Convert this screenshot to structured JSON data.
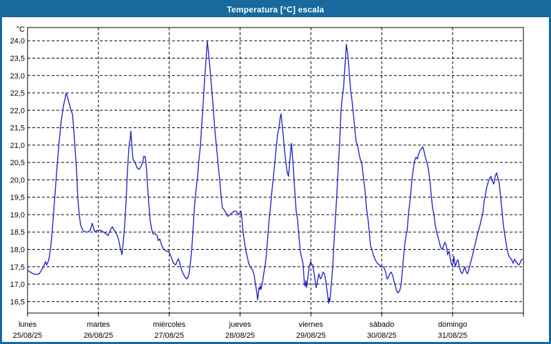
{
  "window": {
    "title": "Temperatura [°C] escala"
  },
  "colors": {
    "titlebar": "#17699e",
    "border": "#17699e",
    "line": "#2424c8",
    "grid": "#000000",
    "text": "#000000",
    "background": "#ffffff"
  },
  "chart_data": {
    "type": "line",
    "title": "Temperatura [°C] escala",
    "ylabel_unit": "°C",
    "grid": true,
    "legend": "none",
    "ylim": [
      16.17,
      24.38
    ],
    "y_tick_labels": [
      "24,0",
      "23,5",
      "23,0",
      "22,5",
      "22,0",
      "21,5",
      "21,0",
      "20,5",
      "20,0",
      "19,5",
      "19,0",
      "18,5",
      "18,0",
      "17,5",
      "17,0",
      "16,5"
    ],
    "x_axis": {
      "hours_total": 168,
      "days": [
        {
          "name": "lunes",
          "date": "25/08/25"
        },
        {
          "name": "martes",
          "date": "26/08/25"
        },
        {
          "name": "miércoles",
          "date": "27/08/25"
        },
        {
          "name": "jueves",
          "date": "28/08/25"
        },
        {
          "name": "viernes",
          "date": "29/08/25"
        },
        {
          "name": "sábado",
          "date": "30/08/25"
        },
        {
          "name": "domingo",
          "date": "31/08/25"
        }
      ]
    },
    "series_name": "Temperatura",
    "points": [
      [
        0,
        17.4
      ],
      [
        0.9,
        17.35
      ],
      [
        1.9,
        17.3
      ],
      [
        3,
        17.28
      ],
      [
        4,
        17.3
      ],
      [
        4.7,
        17.4
      ],
      [
        5.4,
        17.5
      ],
      [
        6.1,
        17.65
      ],
      [
        6.5,
        17.55
      ],
      [
        7.2,
        17.7
      ],
      [
        7.9,
        18.1
      ],
      [
        8.6,
        18.8
      ],
      [
        9.3,
        19.6
      ],
      [
        10,
        20.4
      ],
      [
        10.7,
        21.1
      ],
      [
        11.4,
        21.7
      ],
      [
        12.1,
        22.1
      ],
      [
        13.1,
        22.5
      ],
      [
        13.8,
        22.3
      ],
      [
        14.7,
        22.0
      ],
      [
        15.2,
        21.9
      ],
      [
        15.6,
        21.5
      ],
      [
        16.1,
        20.9
      ],
      [
        16.6,
        20.3
      ],
      [
        17,
        19.5
      ],
      [
        17.5,
        19.0
      ],
      [
        18,
        18.7
      ],
      [
        18.7,
        18.55
      ],
      [
        19.6,
        18.5
      ],
      [
        20.5,
        18.5
      ],
      [
        21.2,
        18.55
      ],
      [
        21.9,
        18.75
      ],
      [
        22.4,
        18.6
      ],
      [
        22.9,
        18.5
      ],
      [
        23.6,
        18.55
      ],
      [
        24.7,
        18.55
      ],
      [
        25.7,
        18.5
      ],
      [
        26.6,
        18.45
      ],
      [
        27.3,
        18.4
      ],
      [
        28,
        18.55
      ],
      [
        28.7,
        18.65
      ],
      [
        29.4,
        18.55
      ],
      [
        30.1,
        18.45
      ],
      [
        30.8,
        18.3
      ],
      [
        31.5,
        18.0
      ],
      [
        32,
        17.85
      ],
      [
        32.4,
        18.2
      ],
      [
        32.9,
        18.7
      ],
      [
        33.4,
        19.4
      ],
      [
        33.8,
        20.2
      ],
      [
        34.3,
        20.9
      ],
      [
        34.8,
        21.2
      ],
      [
        35,
        21.4
      ],
      [
        35.2,
        21.15
      ],
      [
        35.7,
        20.6
      ],
      [
        36.4,
        20.5
      ],
      [
        37.1,
        20.35
      ],
      [
        37.8,
        20.3
      ],
      [
        38.5,
        20.4
      ],
      [
        39,
        20.5
      ],
      [
        39.4,
        20.68
      ],
      [
        39.9,
        20.65
      ],
      [
        40.3,
        20.3
      ],
      [
        40.6,
        19.9
      ],
      [
        41.1,
        19.3
      ],
      [
        41.5,
        18.85
      ],
      [
        42,
        18.6
      ],
      [
        42.5,
        18.45
      ],
      [
        43.2,
        18.45
      ],
      [
        43.9,
        18.4
      ],
      [
        44.3,
        18.25
      ],
      [
        44.8,
        18.3
      ],
      [
        45.5,
        18.1
      ],
      [
        46.2,
        18.0
      ],
      [
        46.9,
        17.95
      ],
      [
        47.6,
        17.95
      ],
      [
        48.1,
        17.9
      ],
      [
        48.8,
        17.75
      ],
      [
        49.5,
        17.6
      ],
      [
        50.2,
        17.55
      ],
      [
        50.6,
        17.65
      ],
      [
        51.1,
        17.73
      ],
      [
        51.6,
        17.6
      ],
      [
        52,
        17.45
      ],
      [
        52.7,
        17.3
      ],
      [
        53.4,
        17.2
      ],
      [
        53.9,
        17.15
      ],
      [
        54.4,
        17.2
      ],
      [
        54.8,
        17.35
      ],
      [
        55.3,
        17.7
      ],
      [
        55.8,
        18.2
      ],
      [
        56.2,
        18.8
      ],
      [
        56.7,
        19.4
      ],
      [
        57.2,
        19.8
      ],
      [
        57.6,
        20.1
      ],
      [
        58.1,
        20.6
      ],
      [
        58.6,
        21.0
      ],
      [
        59,
        21.6
      ],
      [
        59.5,
        22.2
      ],
      [
        60,
        22.9
      ],
      [
        60.4,
        23.4
      ],
      [
        60.9,
        23.98
      ],
      [
        61.4,
        23.6
      ],
      [
        61.8,
        23.2
      ],
      [
        62.3,
        22.7
      ],
      [
        62.8,
        22.2
      ],
      [
        63.2,
        21.7
      ],
      [
        63.7,
        21.2
      ],
      [
        64.2,
        20.8
      ],
      [
        64.6,
        20.4
      ],
      [
        65.1,
        20.0
      ],
      [
        65.6,
        19.5
      ],
      [
        66,
        19.2
      ],
      [
        66.5,
        19.15
      ],
      [
        67.2,
        19.05
      ],
      [
        67.9,
        18.95
      ],
      [
        68.6,
        19.0
      ],
      [
        69.3,
        19.05
      ],
      [
        70,
        19.1
      ],
      [
        70.7,
        19.1
      ],
      [
        71.4,
        19.0
      ],
      [
        71.9,
        19.05
      ],
      [
        72.3,
        19.1
      ],
      [
        72.6,
        18.9
      ],
      [
        73,
        18.5
      ],
      [
        73.5,
        18.2
      ],
      [
        74,
        17.95
      ],
      [
        74.4,
        17.8
      ],
      [
        74.9,
        17.6
      ],
      [
        75.4,
        17.5
      ],
      [
        75.8,
        17.45
      ],
      [
        76.3,
        17.4
      ],
      [
        76.8,
        17.25
      ],
      [
        77.2,
        17.0
      ],
      [
        77.7,
        16.75
      ],
      [
        77.9,
        16.55
      ],
      [
        78.2,
        16.7
      ],
      [
        78.4,
        16.9
      ],
      [
        78.6,
        16.85
      ],
      [
        78.9,
        16.95
      ],
      [
        79.1,
        16.85
      ],
      [
        79.6,
        17.05
      ],
      [
        80,
        17.3
      ],
      [
        80.5,
        17.55
      ],
      [
        81,
        17.9
      ],
      [
        81.4,
        18.4
      ],
      [
        81.9,
        18.9
      ],
      [
        82.4,
        19.3
      ],
      [
        82.8,
        19.7
      ],
      [
        83.3,
        20.1
      ],
      [
        83.8,
        20.5
      ],
      [
        84.2,
        20.9
      ],
      [
        84.7,
        21.3
      ],
      [
        85.2,
        21.5
      ],
      [
        85.6,
        21.8
      ],
      [
        85.9,
        21.9
      ],
      [
        86.1,
        21.7
      ],
      [
        86.6,
        21.3
      ],
      [
        87,
        20.9
      ],
      [
        87.5,
        20.5
      ],
      [
        88,
        20.2
      ],
      [
        88.4,
        20.1
      ],
      [
        88.9,
        20.6
      ],
      [
        89.4,
        21.05
      ],
      [
        89.6,
        20.85
      ],
      [
        90.1,
        20.3
      ],
      [
        90.5,
        19.7
      ],
      [
        91,
        19.1
      ],
      [
        91.5,
        18.85
      ],
      [
        91.9,
        18.4
      ],
      [
        92.4,
        17.95
      ],
      [
        92.9,
        17.75
      ],
      [
        93.3,
        17.6
      ],
      [
        93.8,
        17.0
      ],
      [
        94,
        16.95
      ],
      [
        94.3,
        17.1
      ],
      [
        94.5,
        16.9
      ],
      [
        95,
        17.2
      ],
      [
        95.4,
        17.5
      ],
      [
        95.9,
        17.65
      ],
      [
        96.1,
        17.6
      ],
      [
        96.6,
        17.55
      ],
      [
        97.1,
        17.3
      ],
      [
        97.5,
        17.05
      ],
      [
        97.8,
        16.9
      ],
      [
        98.2,
        17.1
      ],
      [
        98.7,
        17.3
      ],
      [
        99.2,
        17.15
      ],
      [
        99.6,
        17.2
      ],
      [
        100.1,
        17.35
      ],
      [
        100.6,
        17.3
      ],
      [
        101,
        17.1
      ],
      [
        101.5,
        16.8
      ],
      [
        102,
        16.45
      ],
      [
        102.2,
        16.6
      ],
      [
        102.4,
        16.5
      ],
      [
        102.9,
        17.0
      ],
      [
        103.4,
        17.5
      ],
      [
        103.8,
        18.2
      ],
      [
        104.3,
        18.9
      ],
      [
        104.8,
        19.6
      ],
      [
        105.2,
        20.3
      ],
      [
        105.7,
        21.0
      ],
      [
        106.2,
        22.0
      ],
      [
        106.6,
        22.35
      ],
      [
        107.1,
        22.7
      ],
      [
        107.3,
        23.0
      ],
      [
        107.8,
        23.6
      ],
      [
        108,
        23.9
      ],
      [
        108.5,
        23.6
      ],
      [
        109,
        23.1
      ],
      [
        109.4,
        22.6
      ],
      [
        109.9,
        22.3
      ],
      [
        110.4,
        21.9
      ],
      [
        110.8,
        21.5
      ],
      [
        111.3,
        21.1
      ],
      [
        111.8,
        21.0
      ],
      [
        112.2,
        20.8
      ],
      [
        112.7,
        20.6
      ],
      [
        113.2,
        20.5
      ],
      [
        113.6,
        20.2
      ],
      [
        113.9,
        20.0
      ],
      [
        114.3,
        19.7
      ],
      [
        114.8,
        19.2
      ],
      [
        115.3,
        18.9
      ],
      [
        115.7,
        18.55
      ],
      [
        116.2,
        18.1
      ],
      [
        116.7,
        18.0
      ],
      [
        117.1,
        17.85
      ],
      [
        117.8,
        17.7
      ],
      [
        118.5,
        17.6
      ],
      [
        119.2,
        17.55
      ],
      [
        119.9,
        17.5
      ],
      [
        120.4,
        17.5
      ],
      [
        120.9,
        17.45
      ],
      [
        121.3,
        17.35
      ],
      [
        121.8,
        17.15
      ],
      [
        122.3,
        17.2
      ],
      [
        122.7,
        17.3
      ],
      [
        123.2,
        17.35
      ],
      [
        123.7,
        17.25
      ],
      [
        124.1,
        17.1
      ],
      [
        124.6,
        16.95
      ],
      [
        125.1,
        16.8
      ],
      [
        125.5,
        16.75
      ],
      [
        126,
        16.8
      ],
      [
        126.5,
        16.95
      ],
      [
        126.9,
        17.3
      ],
      [
        127.4,
        17.8
      ],
      [
        127.9,
        18.2
      ],
      [
        128.3,
        18.45
      ],
      [
        128.6,
        18.5
      ],
      [
        129,
        19.0
      ],
      [
        129.7,
        19.5
      ],
      [
        130.2,
        20.0
      ],
      [
        130.7,
        20.3
      ],
      [
        131.1,
        20.55
      ],
      [
        131.6,
        20.65
      ],
      [
        132.1,
        20.6
      ],
      [
        132.5,
        20.75
      ],
      [
        133,
        20.85
      ],
      [
        133.5,
        20.9
      ],
      [
        133.9,
        20.95
      ],
      [
        134.4,
        20.8
      ],
      [
        134.9,
        20.6
      ],
      [
        135.3,
        20.5
      ],
      [
        135.8,
        20.3
      ],
      [
        136.3,
        20.0
      ],
      [
        136.7,
        19.6
      ],
      [
        137.2,
        19.2
      ],
      [
        137.7,
        19.0
      ],
      [
        138.1,
        18.7
      ],
      [
        138.6,
        18.5
      ],
      [
        139.1,
        18.35
      ],
      [
        139.5,
        18.2
      ],
      [
        140,
        18.05
      ],
      [
        140.5,
        18.0
      ],
      [
        140.9,
        18.1
      ],
      [
        141.4,
        18.2
      ],
      [
        141.9,
        18.1
      ],
      [
        142.3,
        17.85
      ],
      [
        142.8,
        17.95
      ],
      [
        143.3,
        17.7
      ],
      [
        143.7,
        17.55
      ],
      [
        144.2,
        17.6
      ],
      [
        144.4,
        17.8
      ],
      [
        144.9,
        17.5
      ],
      [
        145.4,
        17.65
      ],
      [
        145.8,
        17.7
      ],
      [
        146.3,
        17.5
      ],
      [
        146.8,
        17.35
      ],
      [
        147.2,
        17.3
      ],
      [
        147.7,
        17.4
      ],
      [
        148.2,
        17.5
      ],
      [
        148.6,
        17.35
      ],
      [
        149.1,
        17.3
      ],
      [
        149.6,
        17.45
      ],
      [
        150,
        17.6
      ],
      [
        150.5,
        17.75
      ],
      [
        151.2,
        18.0
      ],
      [
        151.9,
        18.25
      ],
      [
        152.6,
        18.5
      ],
      [
        153.3,
        18.7
      ],
      [
        153.8,
        18.9
      ],
      [
        154.2,
        19.0
      ],
      [
        154.7,
        19.4
      ],
      [
        155.2,
        19.6
      ],
      [
        155.6,
        19.8
      ],
      [
        156.1,
        19.95
      ],
      [
        156.6,
        20.05
      ],
      [
        157,
        20.1
      ],
      [
        157.5,
        19.95
      ],
      [
        158,
        19.88
      ],
      [
        158.4,
        20.1
      ],
      [
        158.9,
        20.2
      ],
      [
        159.4,
        20.05
      ],
      [
        159.8,
        19.9
      ],
      [
        160.3,
        19.5
      ],
      [
        160.8,
        19.05
      ],
      [
        161.2,
        18.7
      ],
      [
        161.7,
        18.4
      ],
      [
        162.2,
        18.15
      ],
      [
        162.6,
        17.95
      ],
      [
        163.1,
        17.8
      ],
      [
        163.6,
        17.75
      ],
      [
        164,
        17.7
      ],
      [
        164.5,
        17.6
      ],
      [
        165,
        17.72
      ],
      [
        165.4,
        17.65
      ],
      [
        165.9,
        17.6
      ],
      [
        166.4,
        17.55
      ],
      [
        166.8,
        17.6
      ],
      [
        167.3,
        17.7
      ],
      [
        167.7,
        17.72
      ]
    ]
  }
}
